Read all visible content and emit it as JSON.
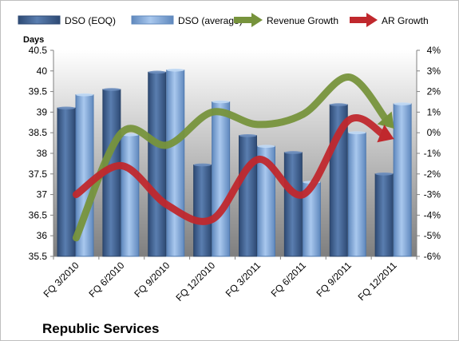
{
  "company_name": "Republic Services",
  "chart_data": {
    "type": "bar",
    "categories": [
      "FQ 3/2010",
      "FQ 6/2010",
      "FQ 9/2010",
      "FQ 12/2010",
      "FQ 3/2011",
      "FQ 6/2011",
      "FQ 9/2011",
      "FQ 12/2011"
    ],
    "y_axis_title": "Days",
    "ylim": [
      35.5,
      40.5
    ],
    "y_ticks": [
      "35.5",
      "36",
      "36.5",
      "37",
      "37.5",
      "38",
      "38.5",
      "39",
      "39.5",
      "40",
      "40.5"
    ],
    "y2lim": [
      -6,
      4
    ],
    "y2_ticks": [
      "-6%",
      "-5%",
      "-4%",
      "-3%",
      "-2%",
      "-1%",
      "0%",
      "1%",
      "2%",
      "3%",
      "4%"
    ],
    "legend_position": "top",
    "grid": false,
    "series": [
      {
        "name": "DSO (EOQ)",
        "type": "bar",
        "axis": "left",
        "color": "#4a6a98",
        "values": [
          39.1,
          39.55,
          39.97,
          37.72,
          38.43,
          38.02,
          39.18,
          37.5
        ]
      },
      {
        "name": "DSO (average)",
        "type": "bar",
        "axis": "left",
        "color": "#8db4e2",
        "values": [
          39.42,
          38.45,
          40.02,
          39.25,
          38.17,
          37.3,
          38.5,
          39.2
        ]
      },
      {
        "name": "Revenue Growth",
        "type": "line",
        "axis": "right",
        "color": "#77933c",
        "values": [
          -5.1,
          0.0,
          -0.6,
          1.0,
          0.4,
          0.9,
          2.7,
          0.2
        ]
      },
      {
        "name": "AR Growth",
        "type": "line",
        "axis": "right",
        "color": "#c0282d",
        "values": [
          -3.0,
          -1.6,
          -3.5,
          -4.2,
          -1.3,
          -3.0,
          0.6,
          -0.3
        ]
      }
    ]
  }
}
